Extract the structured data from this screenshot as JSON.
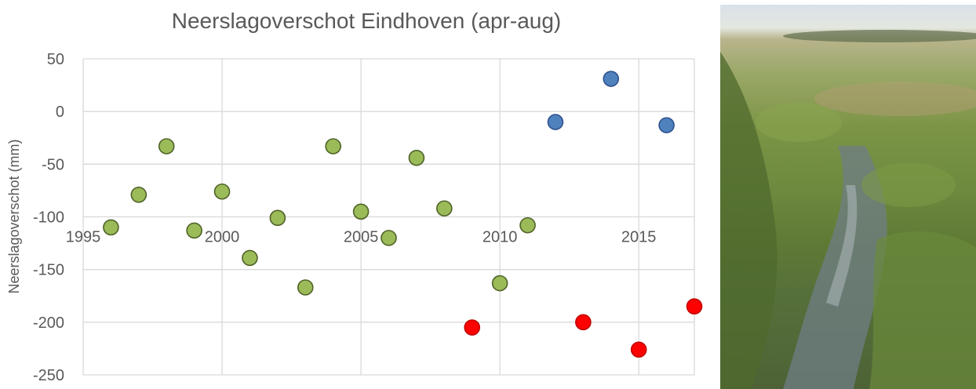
{
  "chart_data": {
    "type": "scatter",
    "title": "Neerslagoverschot Eindhoven (apr-aug)",
    "xlabel": "",
    "ylabel": "Neerslagoverschot (mm)",
    "xlim": [
      1995,
      2017
    ],
    "ylim": [
      -250,
      50
    ],
    "x_ticks": [
      1995,
      2000,
      2005,
      2010,
      2015
    ],
    "y_ticks": [
      50,
      0,
      -50,
      -100,
      -150,
      -200,
      -250
    ],
    "grid": true,
    "legend": "none",
    "points": [
      {
        "x": 1996,
        "y": -110,
        "color": "#9bbb59"
      },
      {
        "x": 1997,
        "y": -79,
        "color": "#9bbb59"
      },
      {
        "x": 1998,
        "y": -33,
        "color": "#9bbb59"
      },
      {
        "x": 1999,
        "y": -113,
        "color": "#9bbb59"
      },
      {
        "x": 2000,
        "y": -76,
        "color": "#9bbb59"
      },
      {
        "x": 2001,
        "y": -139,
        "color": "#9bbb59"
      },
      {
        "x": 2002,
        "y": -101,
        "color": "#9bbb59"
      },
      {
        "x": 2003,
        "y": -167,
        "color": "#9bbb59"
      },
      {
        "x": 2004,
        "y": -33,
        "color": "#9bbb59"
      },
      {
        "x": 2005,
        "y": -95,
        "color": "#9bbb59"
      },
      {
        "x": 2006,
        "y": -120,
        "color": "#9bbb59"
      },
      {
        "x": 2007,
        "y": -44,
        "color": "#9bbb59"
      },
      {
        "x": 2008,
        "y": -92,
        "color": "#9bbb59"
      },
      {
        "x": 2009,
        "y": -205,
        "color": "#ff0000"
      },
      {
        "x": 2010,
        "y": -163,
        "color": "#9bbb59"
      },
      {
        "x": 2011,
        "y": -108,
        "color": "#9bbb59"
      },
      {
        "x": 2012,
        "y": -10,
        "color": "#4f81bd"
      },
      {
        "x": 2013,
        "y": -200,
        "color": "#ff0000"
      },
      {
        "x": 2014,
        "y": 31,
        "color": "#4f81bd"
      },
      {
        "x": 2015,
        "y": -226,
        "color": "#ff0000"
      },
      {
        "x": 2016,
        "y": -13,
        "color": "#4f81bd"
      },
      {
        "x": 2017,
        "y": -185,
        "color": "#ff0000"
      }
    ]
  },
  "colors": {
    "green_fill": "#9bbb59",
    "red_fill": "#ff0000",
    "blue_fill": "#4f81bd",
    "grid": "#d9d9d9",
    "text": "#595959"
  },
  "photo": {
    "icon": "heathland-wetland-photo"
  }
}
